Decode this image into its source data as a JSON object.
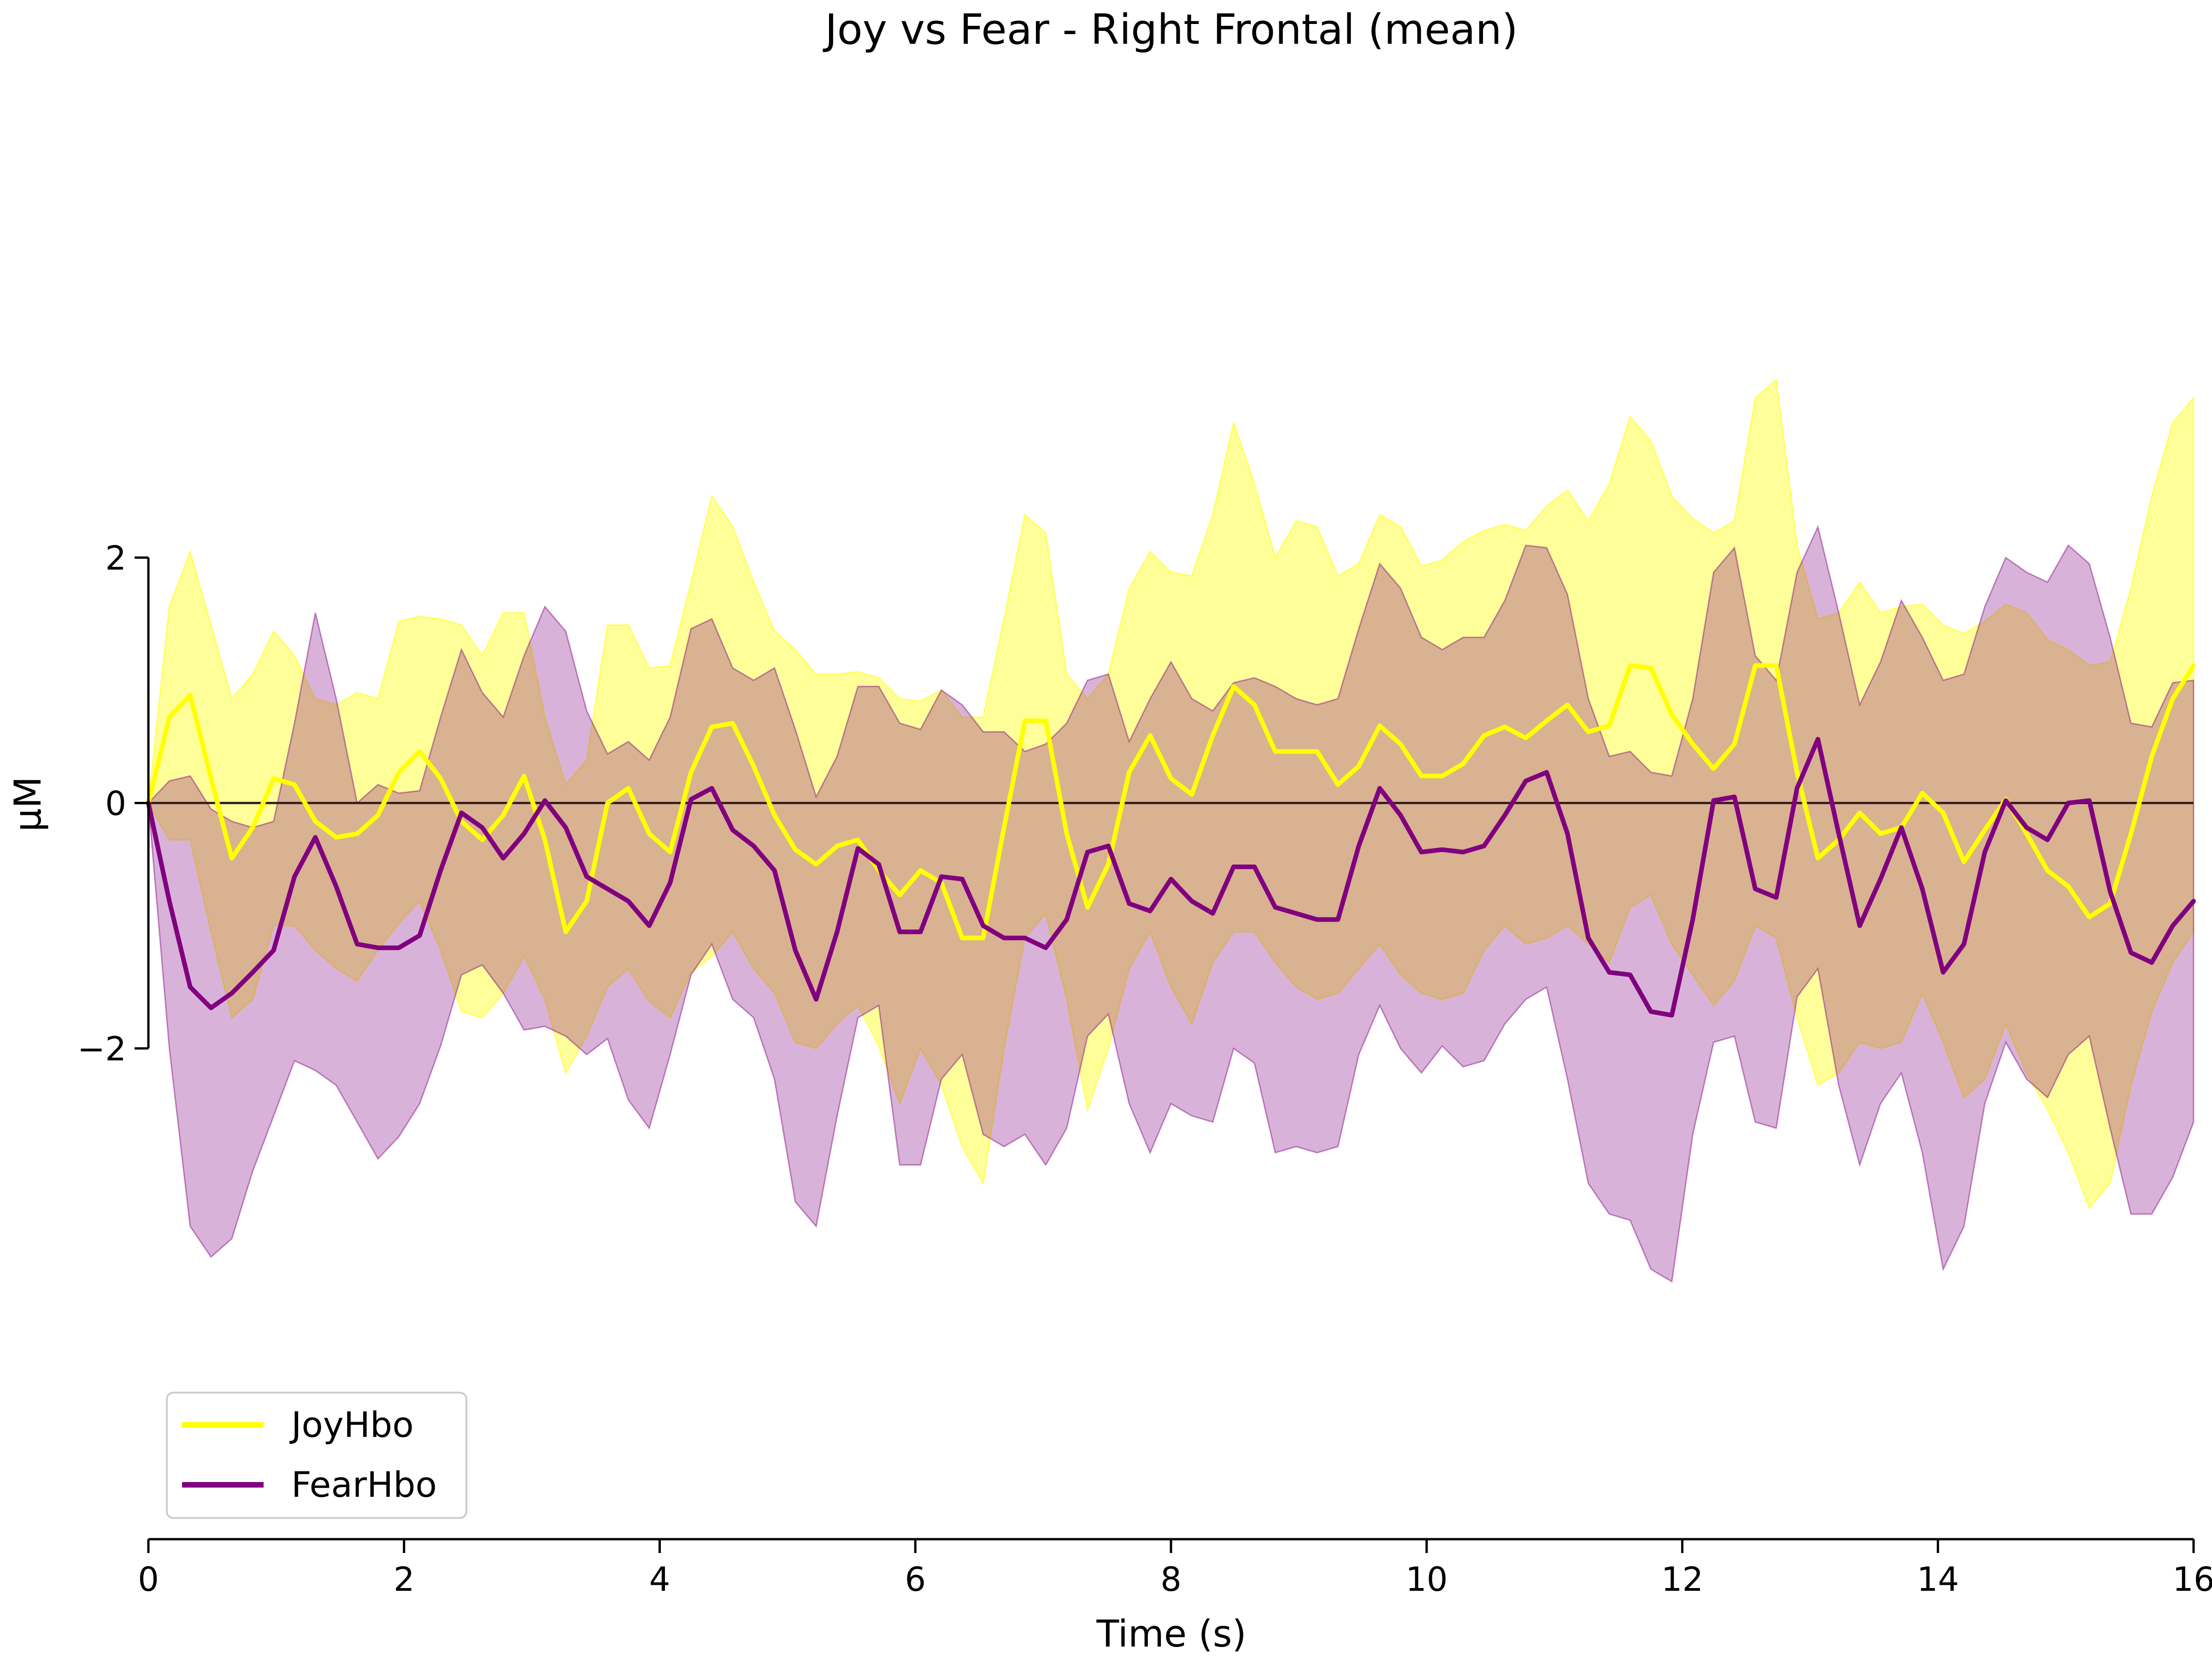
{
  "chart_data": {
    "type": "line",
    "title": "Joy vs Fear - Right Frontal (mean)",
    "xlabel": "Time (s)",
    "ylabel": "µM",
    "xlim": [
      0,
      16
    ],
    "ylim": [
      -6,
      4
    ],
    "x_ticks": [
      0,
      2,
      4,
      6,
      8,
      10,
      12,
      14,
      16
    ],
    "x_tick_labels": [
      "0",
      "2",
      "4",
      "6",
      "8",
      "10",
      "12",
      "14",
      "16"
    ],
    "y_ticks": [
      -2,
      0,
      2
    ],
    "y_tick_labels": [
      "−2",
      "0",
      "2"
    ],
    "grid": false,
    "legend_position": "bottom-left",
    "zero_line": true,
    "x": [
      0.0,
      0.164,
      0.327,
      0.49,
      0.653,
      0.816,
      0.98,
      1.143,
      1.306,
      1.469,
      1.633,
      1.796,
      1.959,
      2.122,
      2.286,
      2.449,
      2.612,
      2.776,
      2.939,
      3.102,
      3.265,
      3.429,
      3.592,
      3.755,
      3.918,
      4.082,
      4.245,
      4.408,
      4.571,
      4.735,
      4.898,
      5.061,
      5.224,
      5.388,
      5.551,
      5.714,
      5.878,
      6.041,
      6.204,
      6.367,
      6.531,
      6.694,
      6.857,
      7.02,
      7.184,
      7.347,
      7.51,
      7.673,
      7.837,
      8.0,
      8.163,
      8.327,
      8.49,
      8.653,
      8.816,
      8.98,
      9.143,
      9.306,
      9.469,
      9.633,
      9.796,
      9.959,
      10.122,
      10.286,
      10.449,
      10.612,
      10.776,
      10.939,
      11.102,
      11.265,
      11.429,
      11.592,
      11.755,
      11.918,
      12.082,
      12.245,
      12.408,
      12.571,
      12.735,
      12.898,
      13.061,
      13.224,
      13.388,
      13.551,
      13.714,
      13.878,
      14.041,
      14.204,
      14.367,
      14.531,
      14.694,
      14.857,
      15.02,
      15.184,
      15.347,
      15.51,
      15.673,
      15.837,
      16.0
    ],
    "series": [
      {
        "name": "JoyHbo",
        "color": "#ffff00",
        "band_alpha": 0.4,
        "values": [
          0.0,
          0.7,
          0.88,
          0.2,
          -0.45,
          -0.2,
          0.2,
          0.15,
          -0.15,
          -0.28,
          -0.25,
          -0.1,
          0.25,
          0.42,
          0.2,
          -0.15,
          -0.3,
          -0.1,
          0.22,
          -0.3,
          -1.05,
          -0.8,
          0.0,
          0.12,
          -0.25,
          -0.4,
          0.25,
          0.62,
          0.65,
          0.3,
          -0.1,
          -0.38,
          -0.5,
          -0.35,
          -0.3,
          -0.55,
          -0.75,
          -0.55,
          -0.65,
          -1.1,
          -1.1,
          -0.2,
          0.67,
          0.67,
          -0.25,
          -0.85,
          -0.5,
          0.25,
          0.55,
          0.2,
          0.07,
          0.55,
          0.95,
          0.8,
          0.42,
          0.42,
          0.42,
          0.15,
          0.3,
          0.63,
          0.48,
          0.22,
          0.22,
          0.32,
          0.55,
          0.62,
          0.53,
          0.67,
          0.8,
          0.58,
          0.63,
          1.12,
          1.1,
          0.72,
          0.48,
          0.28,
          0.48,
          1.12,
          1.12,
          0.25,
          -0.45,
          -0.3,
          -0.08,
          -0.25,
          -0.2,
          0.08,
          -0.08,
          -0.48,
          -0.22,
          0.03,
          -0.25,
          -0.55,
          -0.68,
          -0.93,
          -0.82,
          -0.25,
          0.38,
          0.85,
          1.12
        ],
        "upper": [
          0.0,
          1.6,
          2.05,
          1.45,
          0.85,
          1.05,
          1.4,
          1.2,
          0.85,
          0.8,
          0.9,
          0.85,
          1.48,
          1.52,
          1.5,
          1.45,
          1.2,
          1.55,
          1.55,
          0.7,
          0.15,
          0.35,
          1.45,
          1.45,
          1.1,
          1.12,
          1.8,
          2.5,
          2.25,
          1.8,
          1.4,
          1.25,
          1.05,
          1.05,
          1.07,
          1.02,
          0.85,
          0.83,
          0.92,
          0.7,
          0.7,
          1.5,
          2.35,
          2.2,
          1.05,
          0.85,
          1.05,
          1.75,
          2.05,
          1.88,
          1.85,
          2.35,
          3.1,
          2.6,
          2.0,
          2.3,
          2.25,
          1.85,
          1.95,
          2.35,
          2.25,
          1.93,
          1.98,
          2.13,
          2.22,
          2.27,
          2.22,
          2.42,
          2.55,
          2.3,
          2.6,
          3.15,
          2.95,
          2.5,
          2.32,
          2.2,
          2.3,
          3.3,
          3.45,
          2.1,
          1.5,
          1.55,
          1.8,
          1.55,
          1.6,
          1.62,
          1.45,
          1.38,
          1.48,
          1.62,
          1.55,
          1.33,
          1.25,
          1.12,
          1.15,
          1.75,
          2.5,
          3.1,
          3.3
        ],
        "lower": [
          0.0,
          -0.3,
          -0.3,
          -1.05,
          -1.75,
          -1.6,
          -1.0,
          -1.0,
          -1.2,
          -1.35,
          -1.45,
          -1.2,
          -0.98,
          -0.8,
          -1.2,
          -1.7,
          -1.75,
          -1.55,
          -1.25,
          -1.6,
          -2.2,
          -1.9,
          -1.5,
          -1.35,
          -1.62,
          -1.75,
          -1.38,
          -1.25,
          -1.05,
          -1.35,
          -1.55,
          -1.95,
          -2.0,
          -1.8,
          -1.65,
          -1.98,
          -2.45,
          -2.0,
          -2.3,
          -2.8,
          -3.1,
          -2.0,
          -1.1,
          -0.9,
          -1.6,
          -2.5,
          -2.0,
          -1.35,
          -1.05,
          -1.5,
          -1.8,
          -1.3,
          -1.05,
          -1.05,
          -1.3,
          -1.5,
          -1.6,
          -1.55,
          -1.35,
          -1.15,
          -1.4,
          -1.55,
          -1.6,
          -1.55,
          -1.2,
          -1.0,
          -1.15,
          -1.1,
          -1.0,
          -1.15,
          -1.3,
          -0.85,
          -0.75,
          -1.15,
          -1.4,
          -1.65,
          -1.45,
          -1.0,
          -1.1,
          -1.75,
          -2.3,
          -2.2,
          -1.95,
          -2.0,
          -1.95,
          -1.55,
          -1.95,
          -2.4,
          -2.25,
          -1.8,
          -2.2,
          -2.5,
          -2.85,
          -3.3,
          -3.1,
          -2.3,
          -1.7,
          -1.3,
          -1.05
        ]
      },
      {
        "name": "FearHbo",
        "color": "#800080",
        "band_alpha": 0.3,
        "values": [
          0.0,
          -0.8,
          -1.5,
          -1.67,
          -1.55,
          -1.38,
          -1.2,
          -0.6,
          -0.28,
          -0.68,
          -1.15,
          -1.18,
          -1.18,
          -1.08,
          -0.55,
          -0.08,
          -0.2,
          -0.45,
          -0.25,
          0.02,
          -0.2,
          -0.6,
          -0.7,
          -0.8,
          -1.0,
          -0.65,
          0.03,
          0.12,
          -0.22,
          -0.35,
          -0.55,
          -1.2,
          -1.6,
          -1.05,
          -0.37,
          -0.5,
          -1.05,
          -1.05,
          -0.6,
          -0.62,
          -1.0,
          -1.1,
          -1.1,
          -1.18,
          -0.95,
          -0.4,
          -0.35,
          -0.82,
          -0.88,
          -0.62,
          -0.8,
          -0.9,
          -0.52,
          -0.52,
          -0.85,
          -0.9,
          -0.95,
          -0.95,
          -0.35,
          0.12,
          -0.1,
          -0.4,
          -0.38,
          -0.4,
          -0.35,
          -0.1,
          0.18,
          0.25,
          -0.25,
          -1.1,
          -1.38,
          -1.4,
          -1.7,
          -1.73,
          -0.95,
          0.02,
          0.05,
          -0.7,
          -0.77,
          0.12,
          0.52,
          -0.25,
          -1.0,
          -0.62,
          -0.2,
          -0.7,
          -1.38,
          -1.15,
          -0.4,
          0.02,
          -0.2,
          -0.3,
          0.0,
          0.02,
          -0.72,
          -1.22,
          -1.3,
          -1.0,
          -0.8
        ],
        "upper": [
          0.0,
          0.18,
          0.22,
          -0.05,
          -0.15,
          -0.2,
          -0.15,
          0.65,
          1.55,
          0.85,
          0.0,
          0.15,
          0.08,
          0.1,
          0.7,
          1.25,
          0.9,
          0.7,
          1.2,
          1.6,
          1.4,
          0.75,
          0.4,
          0.5,
          0.35,
          0.7,
          1.42,
          1.5,
          1.1,
          1.0,
          1.1,
          0.6,
          0.05,
          0.38,
          0.95,
          0.95,
          0.65,
          0.6,
          0.92,
          0.8,
          0.58,
          0.58,
          0.42,
          0.48,
          0.65,
          1.0,
          1.05,
          0.5,
          0.85,
          1.15,
          0.85,
          0.75,
          0.98,
          1.02,
          0.95,
          0.85,
          0.8,
          0.85,
          1.42,
          1.95,
          1.75,
          1.35,
          1.25,
          1.35,
          1.35,
          1.65,
          2.1,
          2.08,
          1.7,
          0.85,
          0.38,
          0.42,
          0.25,
          0.22,
          0.85,
          1.88,
          2.08,
          1.2,
          1.0,
          1.88,
          2.25,
          1.55,
          0.8,
          1.15,
          1.65,
          1.35,
          1.0,
          1.05,
          1.6,
          2.0,
          1.88,
          1.8,
          2.1,
          1.95,
          1.35,
          0.65,
          0.62,
          0.98,
          1.0
        ],
        "lower": [
          0.0,
          -2.0,
          -3.45,
          -3.7,
          -3.55,
          -3.0,
          -2.55,
          -2.1,
          -2.18,
          -2.3,
          -2.6,
          -2.9,
          -2.72,
          -2.45,
          -1.98,
          -1.4,
          -1.32,
          -1.55,
          -1.85,
          -1.82,
          -1.9,
          -2.05,
          -1.92,
          -2.42,
          -2.65,
          -2.05,
          -1.4,
          -1.15,
          -1.6,
          -1.75,
          -2.25,
          -3.25,
          -3.45,
          -2.55,
          -1.75,
          -1.65,
          -2.95,
          -2.95,
          -2.25,
          -2.05,
          -2.7,
          -2.8,
          -2.7,
          -2.95,
          -2.65,
          -1.9,
          -1.72,
          -2.45,
          -2.85,
          -2.45,
          -2.55,
          -2.6,
          -2.0,
          -2.12,
          -2.85,
          -2.8,
          -2.85,
          -2.8,
          -2.05,
          -1.65,
          -2.0,
          -2.2,
          -1.98,
          -2.15,
          -2.1,
          -1.8,
          -1.6,
          -1.5,
          -2.25,
          -3.1,
          -3.35,
          -3.4,
          -3.8,
          -3.9,
          -2.7,
          -1.95,
          -1.9,
          -2.6,
          -2.65,
          -1.58,
          -1.35,
          -2.3,
          -2.95,
          -2.45,
          -2.2,
          -2.85,
          -3.8,
          -3.45,
          -2.45,
          -1.95,
          -2.25,
          -2.4,
          -2.05,
          -1.9,
          -2.65,
          -3.35,
          -3.35,
          -3.05,
          -2.6
        ]
      }
    ]
  }
}
